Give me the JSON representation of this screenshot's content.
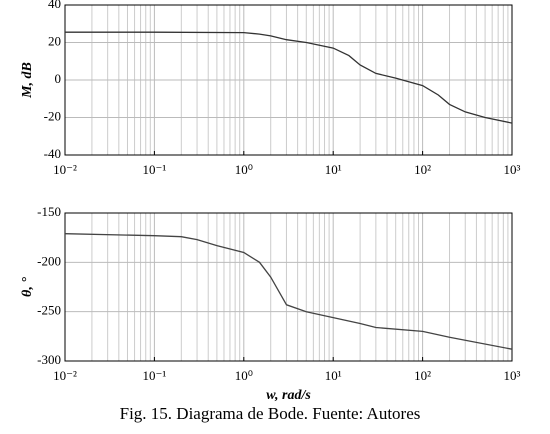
{
  "chart_data": [
    {
      "type": "line",
      "ylabel": "M, dB",
      "xscale": "log",
      "grid": true,
      "minor_grid": true,
      "xlim": [
        0.01,
        1000
      ],
      "ylim": [
        -40,
        40
      ],
      "xticks": [
        {
          "value": 0.01,
          "label": "10⁻²"
        },
        {
          "value": 0.1,
          "label": "10⁻¹"
        },
        {
          "value": 1,
          "label": "10⁰"
        },
        {
          "value": 10,
          "label": "10¹"
        },
        {
          "value": 100,
          "label": "10²"
        },
        {
          "value": 1000,
          "label": "10³"
        }
      ],
      "yticks": [
        -40,
        -20,
        0,
        20,
        40
      ],
      "series": [
        {
          "color": "#333333",
          "x": [
            0.01,
            0.1,
            1,
            1.5,
            2,
            3,
            5,
            10,
            15,
            20,
            30,
            50,
            100,
            150,
            200,
            300,
            500,
            1000
          ],
          "values": [
            25.5,
            25.5,
            25.3,
            24.5,
            23.5,
            21.5,
            20,
            17,
            13,
            8,
            3.5,
            1,
            -3,
            -8,
            -13,
            -17,
            -20,
            -23
          ]
        }
      ]
    },
    {
      "type": "line",
      "ylabel": "θ, °",
      "xlabel": "w, rad/s",
      "xscale": "log",
      "grid": true,
      "minor_grid": true,
      "xlim": [
        0.01,
        1000
      ],
      "ylim": [
        -300,
        -150
      ],
      "xticks": [
        {
          "value": 0.01,
          "label": "10⁻²"
        },
        {
          "value": 0.1,
          "label": "10⁻¹"
        },
        {
          "value": 1,
          "label": "10⁰"
        },
        {
          "value": 10,
          "label": "10¹"
        },
        {
          "value": 100,
          "label": "10²"
        },
        {
          "value": 1000,
          "label": "10³"
        }
      ],
      "yticks": [
        -300,
        -250,
        -200,
        -150
      ],
      "series": [
        {
          "color": "#444444",
          "x": [
            0.01,
            0.1,
            0.2,
            0.3,
            0.5,
            1,
            1.5,
            2,
            3,
            5,
            10,
            20,
            30,
            100,
            200,
            1000
          ],
          "values": [
            -171,
            -173,
            -174,
            -177,
            -183,
            -190,
            -200,
            -215,
            -243,
            -250,
            -256,
            -262,
            -266,
            -270,
            -276,
            -288
          ]
        }
      ]
    }
  ],
  "caption": "Fig. 15. Diagrama de Bode. Fuente: Autores"
}
